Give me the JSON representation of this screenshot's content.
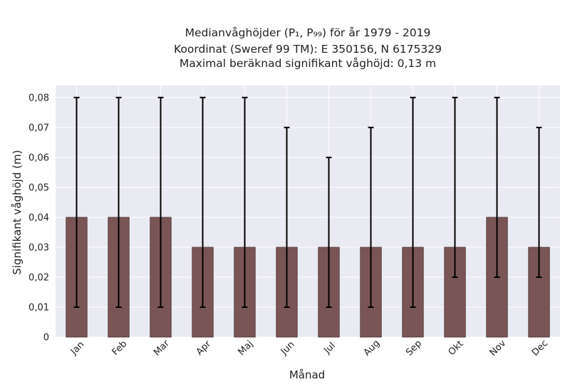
{
  "chart_data": {
    "type": "bar",
    "title_lines": [
      "Medianvåghöjder (P₁, P₉₉) för år 1979 - 2019",
      "Koordinat (Sweref 99 TM): E 350156, N 6175329",
      "Maximal beräknad signifikant våghöjd: 0,13 m"
    ],
    "xlabel": "Månad",
    "ylabel": "Signifikant våghöjd (m)",
    "categories": [
      "Jan",
      "Feb",
      "Mar",
      "Apr",
      "Maj",
      "Jun",
      "Jul",
      "Aug",
      "Sep",
      "Okt",
      "Nov",
      "Dec"
    ],
    "values": [
      0.04,
      0.04,
      0.04,
      0.03,
      0.03,
      0.03,
      0.03,
      0.03,
      0.03,
      0.03,
      0.04,
      0.03
    ],
    "p1": [
      0.01,
      0.01,
      0.01,
      0.01,
      0.01,
      0.01,
      0.01,
      0.01,
      0.01,
      0.02,
      0.02,
      0.02
    ],
    "p99": [
      0.08,
      0.08,
      0.08,
      0.08,
      0.08,
      0.07,
      0.06,
      0.07,
      0.08,
      0.08,
      0.08,
      0.07
    ],
    "ylim": [
      0,
      0.084
    ],
    "yticks": [
      0,
      0.01,
      0.02,
      0.03,
      0.04,
      0.05,
      0.06,
      0.07,
      0.08
    ],
    "ytick_labels": [
      "0",
      "0,01",
      "0,02",
      "0,03",
      "0,04",
      "0,05",
      "0,06",
      "0,07",
      "0,08"
    ],
    "grid": true,
    "colors": {
      "bar": "#7a5555",
      "bar_edge": "#4a3232",
      "errorbar": "#000000",
      "plot_bg": "#eaeaf2",
      "grid": "#ffffff"
    }
  }
}
